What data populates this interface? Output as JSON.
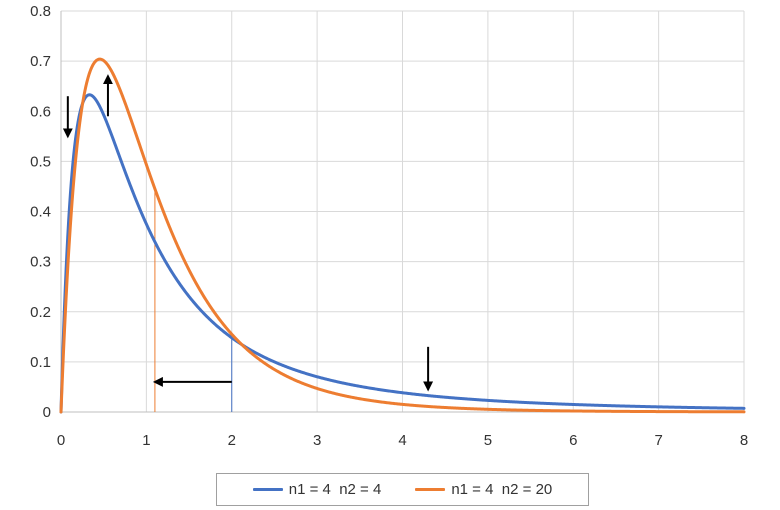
{
  "chart_data": {
    "type": "line",
    "title": "",
    "xlabel": "",
    "ylabel": "",
    "xlim": [
      0,
      8
    ],
    "ylim": [
      0,
      0.8
    ],
    "x_ticks": [
      "0",
      "1",
      "2",
      "3",
      "4",
      "5",
      "6",
      "7",
      "8"
    ],
    "y_ticks": [
      "0",
      "0.1",
      "0.2",
      "0.3",
      "0.4",
      "0.5",
      "0.6",
      "0.7",
      "0.8"
    ],
    "grid": true,
    "legend_position": "bottom",
    "x": [
      0.05,
      0.1,
      0.2,
      0.33,
      0.5,
      0.75,
      1.0,
      1.1,
      1.5,
      2.0,
      2.5,
      3.0,
      4.0,
      5.0,
      6.0,
      7.0,
      8.0
    ],
    "series": [
      {
        "name": "n1 = 4  n2 = 4",
        "color": "#4472c4",
        "df1": 4,
        "df2": 4,
        "values": [
          0.2,
          0.37,
          0.55,
          0.63,
          0.59,
          0.47,
          0.375,
          0.344,
          0.24,
          0.148,
          0.097,
          0.066,
          0.035,
          0.02,
          0.013,
          0.009,
          0.006
        ]
      },
      {
        "name": "n1 = 4  n2 = 20",
        "color": "#ed7d31",
        "df1": 4,
        "df2": 20,
        "values": [
          0.17,
          0.31,
          0.52,
          0.66,
          0.7,
          0.63,
          0.49,
          0.44,
          0.28,
          0.147,
          0.076,
          0.04,
          0.012,
          0.004,
          0.0015,
          0.0006,
          0.0002
        ]
      }
    ],
    "reference_lines": [
      {
        "x": 2.0,
        "y": 0.148,
        "color": "#4472c4"
      },
      {
        "x": 1.1,
        "y": 0.44,
        "color": "#ed7d31"
      }
    ],
    "annotations": [
      {
        "type": "arrow",
        "direction": "down",
        "x": 0.08,
        "y_from": 0.63,
        "y_to": 0.55
      },
      {
        "type": "arrow",
        "direction": "up",
        "x": 0.55,
        "y_from": 0.59,
        "y_to": 0.67
      },
      {
        "type": "arrow",
        "direction": "left",
        "y": 0.06,
        "x_from": 2.0,
        "x_to": 1.1
      },
      {
        "type": "arrow",
        "direction": "down",
        "x": 4.3,
        "y_from": 0.13,
        "y_to": 0.045
      }
    ]
  }
}
